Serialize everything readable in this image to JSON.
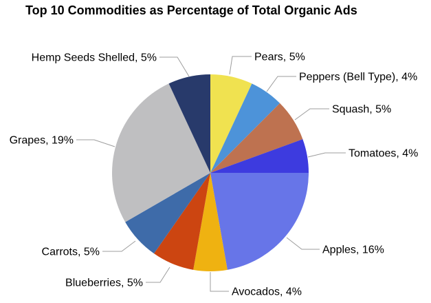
{
  "window": {
    "background_color": "#FFFFFF",
    "text_color": "#000000"
  },
  "chart_data": {
    "type": "pie",
    "title": "Top 10 Commodities as Percentage of Total Organic Ads",
    "categories": [
      "Pears",
      "Peppers (Bell Type)",
      "Squash",
      "Tomatoes",
      "Apples",
      "Avocados",
      "Blueberries",
      "Carrots",
      "Grapes",
      "Hemp Seeds Shelled"
    ],
    "values": [
      5,
      4,
      5,
      4,
      16,
      4,
      5,
      5,
      19,
      5
    ],
    "value_unit": "%",
    "labels": [
      "Pears, 5%",
      "Peppers (Bell Type), 4%",
      "Squash, 5%",
      "Tomatoes, 4%",
      "Apples, 16%",
      "Avocados, 4%",
      "Blueberries, 5%",
      "Carrots, 5%",
      "Grapes, 19%",
      "Hemp Seeds Shelled, 5%"
    ],
    "colors": [
      "#F0E250",
      "#4D93D9",
      "#BE7250",
      "#3D3BDF",
      "#6775E8",
      "#EFB211",
      "#CC4511",
      "#3E6BA9",
      "#BFBFC1",
      "#283A6B"
    ],
    "slice_order": "clockwise-from-12-oclock",
    "normalization": "slice angles proportional to value divided by sum of values (sum = 72)",
    "legend_position": "labels-around-pie-with-leader-lines",
    "leader_line_color": "#9C9C9C",
    "label_text_color": "#000000",
    "grid": "off"
  }
}
